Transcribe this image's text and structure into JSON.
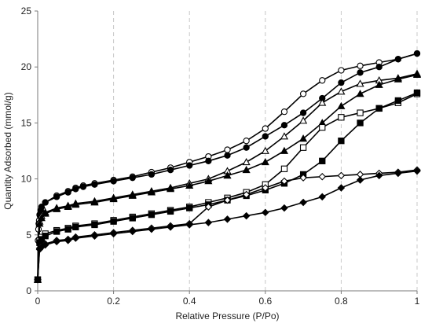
{
  "chart_data": {
    "type": "scatter",
    "title": "",
    "xlabel": "Relative Pressure (P/Po)",
    "ylabel": "Quantity Adsorbed (mmol/g)",
    "xlim": [
      0,
      1
    ],
    "ylim": [
      0,
      25
    ],
    "x_ticks": [
      "0",
      "0.2",
      "0.4",
      "0.6",
      "0.8",
      "1"
    ],
    "y_ticks": [
      "0",
      "5",
      "10",
      "15",
      "20",
      "25"
    ],
    "grid": "vertical dashed",
    "legend": "none",
    "series": [
      {
        "marker": "circle",
        "fill": "white",
        "color": "#000000",
        "x": [
          0.0,
          0.001,
          0.002,
          0.003,
          0.004,
          0.006,
          0.008,
          0.012,
          0.02,
          0.05,
          0.08,
          0.1,
          0.12,
          0.15,
          0.2,
          0.25,
          0.3,
          0.35,
          0.4,
          0.45,
          0.5,
          0.55,
          0.6,
          0.65,
          0.7,
          0.75,
          0.8,
          0.85,
          0.9,
          0.95,
          1.0
        ],
        "y": [
          1.0,
          4.5,
          5.5,
          6.0,
          6.3,
          6.7,
          7.0,
          7.3,
          7.9,
          8.5,
          8.9,
          9.2,
          9.4,
          9.6,
          9.9,
          10.2,
          10.6,
          11.0,
          11.5,
          12.0,
          12.6,
          13.4,
          14.5,
          16.0,
          17.6,
          18.8,
          19.7,
          20.1,
          20.4,
          20.7,
          21.2
        ]
      },
      {
        "marker": "circle",
        "fill": "black",
        "color": "#000000",
        "x": [
          0.0,
          0.003,
          0.005,
          0.008,
          0.01,
          0.02,
          0.05,
          0.08,
          0.1,
          0.12,
          0.15,
          0.2,
          0.25,
          0.3,
          0.35,
          0.4,
          0.45,
          0.5,
          0.55,
          0.6,
          0.65,
          0.7,
          0.75,
          0.8,
          0.85,
          0.9,
          0.95,
          1.0
        ],
        "y": [
          1.0,
          6.0,
          6.8,
          7.2,
          7.5,
          7.9,
          8.4,
          8.8,
          9.1,
          9.3,
          9.5,
          9.8,
          10.1,
          10.4,
          10.8,
          11.2,
          11.6,
          12.1,
          12.8,
          13.8,
          14.8,
          15.9,
          17.2,
          18.6,
          19.5,
          20.0,
          20.7,
          21.2
        ]
      },
      {
        "marker": "triangle",
        "fill": "white",
        "color": "#000000",
        "x": [
          0.0,
          0.005,
          0.01,
          0.02,
          0.05,
          0.08,
          0.1,
          0.15,
          0.2,
          0.25,
          0.3,
          0.35,
          0.4,
          0.45,
          0.5,
          0.55,
          0.6,
          0.65,
          0.7,
          0.75,
          0.8,
          0.85,
          0.9,
          0.95,
          1.0
        ],
        "y": [
          1.0,
          6.2,
          6.7,
          7.0,
          7.4,
          7.6,
          7.8,
          8.0,
          8.3,
          8.6,
          8.9,
          9.2,
          9.6,
          10.0,
          10.7,
          11.5,
          12.5,
          13.8,
          15.2,
          16.8,
          17.8,
          18.5,
          18.8,
          19.0,
          19.4
        ]
      },
      {
        "marker": "triangle",
        "fill": "black",
        "color": "#000000",
        "x": [
          0.0,
          0.005,
          0.01,
          0.02,
          0.05,
          0.08,
          0.1,
          0.15,
          0.2,
          0.25,
          0.3,
          0.35,
          0.4,
          0.45,
          0.5,
          0.55,
          0.6,
          0.65,
          0.7,
          0.75,
          0.8,
          0.85,
          0.9,
          0.95,
          1.0
        ],
        "y": [
          1.0,
          6.0,
          6.5,
          6.9,
          7.3,
          7.5,
          7.7,
          7.9,
          8.2,
          8.5,
          8.8,
          9.1,
          9.4,
          9.8,
          10.3,
          10.8,
          11.5,
          12.5,
          13.6,
          15.0,
          16.5,
          17.6,
          18.4,
          18.9,
          19.3
        ]
      },
      {
        "marker": "square",
        "fill": "white",
        "color": "#000000",
        "x": [
          0.0,
          0.005,
          0.01,
          0.02,
          0.05,
          0.08,
          0.1,
          0.15,
          0.2,
          0.25,
          0.3,
          0.35,
          0.4,
          0.45,
          0.5,
          0.55,
          0.6,
          0.65,
          0.7,
          0.75,
          0.8,
          0.85,
          0.9,
          0.95,
          1.0
        ],
        "y": [
          1.0,
          4.5,
          4.8,
          5.1,
          5.4,
          5.6,
          5.8,
          6.0,
          6.3,
          6.6,
          6.9,
          7.2,
          7.5,
          7.9,
          8.3,
          8.8,
          9.5,
          10.9,
          12.8,
          14.6,
          15.5,
          15.9,
          16.3,
          16.8,
          17.6
        ]
      },
      {
        "marker": "square",
        "fill": "black",
        "color": "#000000",
        "x": [
          0.0,
          0.005,
          0.01,
          0.02,
          0.05,
          0.08,
          0.1,
          0.15,
          0.2,
          0.25,
          0.3,
          0.35,
          0.4,
          0.45,
          0.5,
          0.55,
          0.6,
          0.65,
          0.7,
          0.75,
          0.8,
          0.85,
          0.9,
          0.95,
          1.0
        ],
        "y": [
          1.0,
          4.3,
          4.6,
          4.9,
          5.3,
          5.5,
          5.7,
          5.9,
          6.2,
          6.5,
          6.8,
          7.1,
          7.4,
          7.7,
          8.1,
          8.5,
          9.0,
          9.6,
          10.4,
          11.6,
          13.4,
          15.0,
          16.3,
          17.0,
          17.7
        ]
      },
      {
        "marker": "diamond",
        "fill": "white",
        "color": "#000000",
        "x": [
          0.0,
          0.005,
          0.01,
          0.02,
          0.05,
          0.08,
          0.1,
          0.15,
          0.2,
          0.25,
          0.3,
          0.35,
          0.4,
          0.45,
          0.5,
          0.55,
          0.6,
          0.65,
          0.7,
          0.75,
          0.8,
          0.85,
          0.9,
          0.95,
          1.0
        ],
        "y": [
          1.0,
          3.8,
          4.0,
          4.2,
          4.5,
          4.6,
          4.8,
          5.0,
          5.2,
          5.4,
          5.6,
          5.8,
          6.0,
          7.5,
          8.1,
          8.6,
          9.2,
          9.8,
          10.1,
          10.2,
          10.3,
          10.4,
          10.5,
          10.6,
          10.8
        ]
      },
      {
        "marker": "diamond",
        "fill": "black",
        "color": "#000000",
        "x": [
          0.0,
          0.005,
          0.01,
          0.02,
          0.05,
          0.08,
          0.1,
          0.15,
          0.2,
          0.25,
          0.3,
          0.35,
          0.4,
          0.45,
          0.5,
          0.55,
          0.6,
          0.65,
          0.7,
          0.75,
          0.8,
          0.85,
          0.9,
          0.95,
          1.0
        ],
        "y": [
          1.0,
          3.7,
          3.9,
          4.1,
          4.4,
          4.5,
          4.7,
          4.9,
          5.1,
          5.3,
          5.5,
          5.7,
          5.9,
          6.1,
          6.4,
          6.7,
          7.0,
          7.4,
          7.9,
          8.4,
          9.2,
          9.9,
          10.3,
          10.5,
          10.7
        ]
      }
    ]
  }
}
